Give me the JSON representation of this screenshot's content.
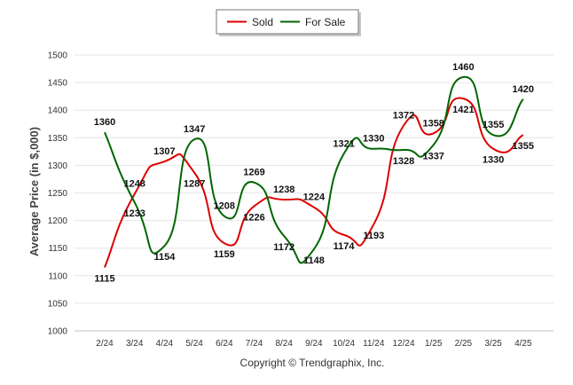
{
  "chart_data": {
    "type": "line",
    "categories": [
      "2/24",
      "3/24",
      "4/24",
      "5/24",
      "6/24",
      "7/24",
      "8/24",
      "9/24",
      "10/24",
      "11/24",
      "12/24",
      "1/25",
      "2/25",
      "3/25",
      "4/25"
    ],
    "series": [
      {
        "name": "Sold",
        "color": "#dd0000",
        "values": [
          1115,
          1248,
          1307,
          1287,
          1159,
          1226,
          1238,
          1224,
          1174,
          1193,
          1372,
          1358,
          1421,
          1330,
          1355
        ]
      },
      {
        "name": "For Sale",
        "color": "#006600",
        "values": [
          1360,
          1233,
          1154,
          1347,
          1208,
          1269,
          1172,
          1148,
          1321,
          1330,
          1328,
          1337,
          1460,
          1355,
          1420
        ]
      }
    ],
    "ylabel": "Average Price (in $,000)",
    "xlabel": "",
    "ylim": [
      1000,
      1500
    ],
    "yticks": [
      1000,
      1050,
      1100,
      1150,
      1200,
      1250,
      1300,
      1350,
      1400,
      1450,
      1500
    ],
    "grid": true,
    "legend_position": "top-center"
  },
  "footer": {
    "copyright": "Copyright © Trendgraphix, Inc."
  }
}
